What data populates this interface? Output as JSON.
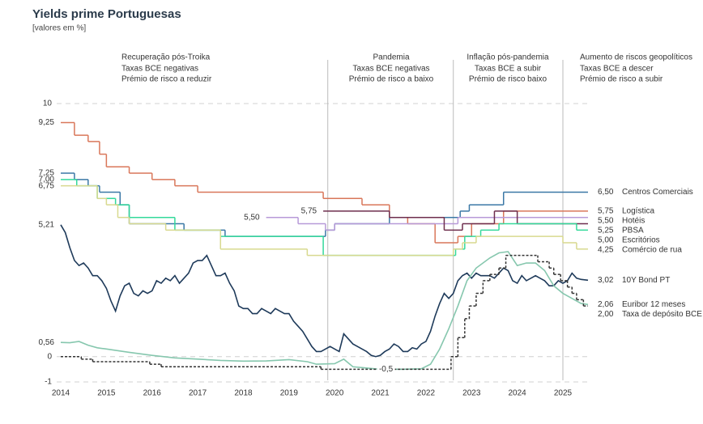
{
  "chart_data": {
    "type": "line",
    "title": "Yields prime Portuguesas",
    "subtitle": "[valores em %]",
    "xlim": [
      2014,
      2025.55
    ],
    "ylim": [
      -1,
      10
    ],
    "xticks": [
      2014,
      2015,
      2016,
      2017,
      2018,
      2019,
      2020,
      2021,
      2022,
      2023,
      2024,
      2025
    ],
    "yticks": [
      -1,
      0,
      10
    ],
    "grid": true,
    "period_dividers": [
      2019.85,
      2022.6,
      2025.0
    ],
    "periods": [
      {
        "title": "Recuperação pós-Troika",
        "lines": [
          "Taxas BCE negativas",
          "Prémio de risco a reduzir"
        ]
      },
      {
        "title": "Pandemia",
        "lines": [
          "Taxas BCE negativas",
          "Prémio de risco a baixo"
        ]
      },
      {
        "title": "Inflação pós-pandemia",
        "lines": [
          "Taxas BCE a subir",
          "Prémio de risco baixo"
        ]
      },
      {
        "title": "Aumento de riscos geopolíticos",
        "lines": [
          "Taxas BCE a descer",
          "Prémio de risco a subir"
        ]
      }
    ],
    "series": [
      {
        "name": "Centros Comerciais",
        "color": "#3b78a6",
        "style": "step",
        "x": [
          2014,
          2014.3,
          2014.6,
          2014.85,
          2015.3,
          2015.5,
          2016.7,
          2017.6,
          2019.8,
          2020.0,
          2021.2,
          2022.75,
          2022.95,
          2023.7
        ],
        "values": [
          7.25,
          7.0,
          6.75,
          6.5,
          6.0,
          5.25,
          5.0,
          4.75,
          5.0,
          5.25,
          5.5,
          5.75,
          6.0,
          6.5
        ],
        "value_labels": {
          "0": "7,25",
          "13": "6,50"
        }
      },
      {
        "name": "Logística",
        "color": "#d9775a",
        "style": "step",
        "x": [
          2014,
          2014.3,
          2014.6,
          2014.85,
          2015.0,
          2015.5,
          2016.0,
          2016.5,
          2017.0,
          2019.75,
          2020.6,
          2021.2,
          2021.6,
          2022.2,
          2022.7,
          2023.0,
          2023.7
        ],
        "values": [
          9.25,
          8.75,
          8.5,
          8.0,
          7.5,
          7.25,
          7.0,
          6.75,
          6.5,
          6.25,
          6.0,
          5.5,
          5.25,
          4.5,
          4.75,
          5.25,
          5.75
        ],
        "value_labels": {
          "0": "9,25",
          "16": "5,75"
        }
      },
      {
        "name": "Hotéis",
        "color": "#b79ad8",
        "style": "step",
        "x": [
          2018.5,
          2019.2,
          2019.8,
          2020.0,
          2022.7
        ],
        "values": [
          5.5,
          5.25,
          5.0,
          5.25,
          5.5
        ],
        "value_labels": {
          "0": "5,50",
          "4": "5,50"
        }
      },
      {
        "name": "PBSA",
        "color": "#6e2e4e",
        "style": "step",
        "x": [
          2019.75,
          2021.2,
          2022.4,
          2022.8,
          2023.5,
          2024.0
        ],
        "values": [
          5.75,
          5.5,
          5.0,
          5.25,
          5.75,
          5.25
        ],
        "value_labels": {
          "0": "5,75",
          "5": "5,25"
        }
      },
      {
        "name": "Escritórios",
        "color": "#34d99b",
        "style": "step",
        "x": [
          2014,
          2014.35,
          2014.8,
          2015.2,
          2015.5,
          2016.5,
          2017.5,
          2019.75,
          2022.65,
          2022.85,
          2023.2,
          2023.6,
          2025.3
        ],
        "values": [
          7.0,
          6.75,
          6.25,
          6.0,
          5.5,
          5.0,
          4.75,
          4.0,
          4.25,
          4.75,
          5.0,
          5.25,
          5.0
        ],
        "value_labels": {
          "0": "7,00",
          "12": "5,00"
        }
      },
      {
        "name": "Comércio de rua",
        "color": "#d8d98f",
        "style": "step",
        "x": [
          2014,
          2014.8,
          2015.0,
          2015.25,
          2015.5,
          2016.3,
          2017.5,
          2019.4,
          2022.6,
          2022.8,
          2023.1,
          2025.0,
          2025.3
        ],
        "values": [
          6.75,
          6.25,
          6.0,
          5.5,
          5.25,
          5.0,
          4.25,
          4.0,
          4.25,
          4.5,
          4.75,
          4.5,
          4.25
        ],
        "value_labels": {
          "0": "6,75",
          "12": "4,25"
        }
      },
      {
        "name": "10Y Bond PT",
        "color": "#1e3a5a",
        "style": "line",
        "x": [
          2014,
          2014.1,
          2014.2,
          2014.3,
          2014.4,
          2014.5,
          2014.6,
          2014.7,
          2014.8,
          2014.9,
          2015,
          2015.1,
          2015.2,
          2015.3,
          2015.4,
          2015.5,
          2015.6,
          2015.7,
          2015.8,
          2015.9,
          2016,
          2016.1,
          2016.2,
          2016.3,
          2016.4,
          2016.5,
          2016.6,
          2016.7,
          2016.8,
          2016.9,
          2017,
          2017.1,
          2017.2,
          2017.3,
          2017.4,
          2017.5,
          2017.6,
          2017.7,
          2017.8,
          2017.9,
          2018,
          2018.1,
          2018.2,
          2018.3,
          2018.4,
          2018.5,
          2018.6,
          2018.7,
          2018.8,
          2018.9,
          2019,
          2019.1,
          2019.2,
          2019.3,
          2019.4,
          2019.5,
          2019.6,
          2019.7,
          2019.8,
          2019.9,
          2020,
          2020.1,
          2020.2,
          2020.3,
          2020.4,
          2020.5,
          2020.6,
          2020.7,
          2020.8,
          2020.9,
          2021,
          2021.1,
          2021.2,
          2021.3,
          2021.4,
          2021.5,
          2021.6,
          2021.7,
          2021.8,
          2021.9,
          2022,
          2022.1,
          2022.2,
          2022.3,
          2022.4,
          2022.5,
          2022.6,
          2022.7,
          2022.8,
          2022.9,
          2023,
          2023.1,
          2023.2,
          2023.3,
          2023.4,
          2023.5,
          2023.6,
          2023.7,
          2023.8,
          2023.9,
          2024,
          2024.1,
          2024.2,
          2024.3,
          2024.4,
          2024.5,
          2024.6,
          2024.7,
          2024.8,
          2024.9,
          2025,
          2025.1,
          2025.2,
          2025.3,
          2025.4,
          2025.55
        ],
        "values": [
          5.21,
          4.9,
          4.3,
          3.8,
          3.6,
          3.7,
          3.5,
          3.2,
          3.2,
          3.0,
          2.7,
          2.2,
          1.8,
          2.4,
          2.8,
          2.9,
          2.5,
          2.4,
          2.6,
          2.5,
          2.6,
          3.0,
          2.9,
          3.1,
          3.0,
          3.2,
          2.9,
          3.1,
          3.3,
          3.7,
          3.8,
          3.8,
          4.0,
          3.6,
          3.2,
          3.2,
          3.3,
          2.9,
          2.6,
          2.0,
          1.9,
          1.9,
          1.7,
          1.7,
          1.9,
          1.8,
          1.7,
          1.9,
          1.8,
          1.7,
          1.7,
          1.4,
          1.2,
          1.0,
          0.7,
          0.4,
          0.2,
          0.2,
          0.3,
          0.4,
          0.3,
          0.2,
          0.9,
          0.7,
          0.5,
          0.4,
          0.3,
          0.2,
          0.05,
          0.0,
          0.05,
          0.2,
          0.3,
          0.5,
          0.4,
          0.2,
          0.2,
          0.35,
          0.3,
          0.5,
          0.6,
          1.0,
          1.6,
          2.1,
          2.5,
          2.3,
          2.5,
          3.0,
          3.2,
          3.3,
          3.1,
          3.3,
          3.2,
          3.2,
          3.2,
          3.1,
          3.3,
          3.5,
          3.4,
          3.0,
          2.9,
          3.2,
          3.0,
          3.1,
          3.2,
          3.1,
          3.0,
          2.8,
          2.8,
          3.0,
          2.9,
          3.0,
          3.3,
          3.1,
          3.05,
          3.02
        ],
        "value_labels": {
          "0": "5,21",
          "115": "3,02"
        }
      },
      {
        "name": "Euribor 12 meses",
        "color": "#86c7ae",
        "style": "line",
        "x": [
          2014,
          2014.2,
          2014.4,
          2014.6,
          2014.8,
          2015,
          2015.5,
          2016,
          2016.5,
          2017,
          2017.5,
          2018,
          2018.5,
          2019,
          2019.4,
          2019.6,
          2020,
          2020.2,
          2020.4,
          2020.7,
          2021,
          2021.5,
          2021.9,
          2022.1,
          2022.3,
          2022.5,
          2022.7,
          2022.9,
          2023.1,
          2023.4,
          2023.6,
          2023.8,
          2024,
          2024.2,
          2024.4,
          2024.6,
          2024.8,
          2025,
          2025.2,
          2025.4,
          2025.55
        ],
        "values": [
          0.56,
          0.55,
          0.6,
          0.45,
          0.35,
          0.3,
          0.17,
          0.05,
          -0.05,
          -0.1,
          -0.15,
          -0.18,
          -0.17,
          -0.12,
          -0.2,
          -0.3,
          -0.28,
          -0.1,
          -0.4,
          -0.45,
          -0.5,
          -0.5,
          -0.48,
          -0.3,
          0.3,
          1.1,
          2.0,
          3.0,
          3.5,
          3.9,
          4.1,
          4.15,
          3.6,
          3.7,
          3.7,
          3.4,
          2.8,
          2.5,
          2.3,
          2.1,
          2.06
        ],
        "value_labels": {
          "0": "0,56",
          "40": "2,06"
        }
      },
      {
        "name": "Taxa de depósito BCE",
        "color": "#333333",
        "style": "step",
        "dashed": true,
        "x": [
          2014,
          2014.45,
          2014.7,
          2015.95,
          2016.2,
          2019.7,
          2022.55,
          2022.7,
          2022.85,
          2022.95,
          2023.1,
          2023.25,
          2023.4,
          2023.6,
          2023.75,
          2024.45,
          2024.7,
          2024.8,
          2024.95,
          2025.1,
          2025.2,
          2025.3,
          2025.45
        ],
        "values": [
          0.0,
          -0.1,
          -0.2,
          -0.3,
          -0.4,
          -0.5,
          0.0,
          0.75,
          1.5,
          2.0,
          2.5,
          3.0,
          3.25,
          3.5,
          4.0,
          3.75,
          3.5,
          3.25,
          3.0,
          2.75,
          2.5,
          2.25,
          2.0
        ],
        "value_labels": {
          "5": "-0,5",
          "22": "2,00"
        }
      }
    ]
  }
}
